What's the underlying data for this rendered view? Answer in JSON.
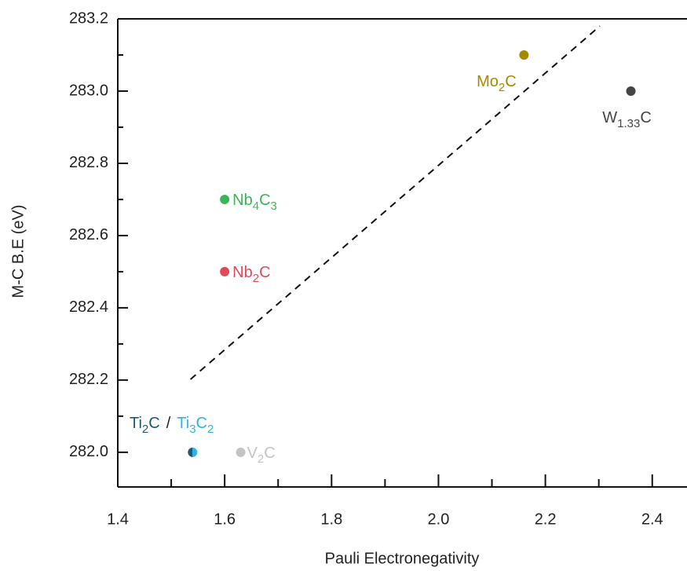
{
  "chart_data": {
    "type": "scatter",
    "x_label": "Pauli Electronegativity",
    "y_label": "M-C B.E (eV)",
    "xlim": [
      1.4,
      2.465
    ],
    "ylim": [
      281.904,
      283.2
    ],
    "xticks": [
      1.4,
      1.6,
      1.8,
      {
        "value": 2,
        "label": "2.0"
      },
      2.2,
      2.4
    ],
    "yticks": [
      {
        "value": 282,
        "label": "282.0"
      },
      282.2,
      282.4,
      282.6,
      282.8,
      {
        "value": 283,
        "label": "283.0"
      },
      283.2
    ],
    "separator": "/",
    "series": [
      {
        "name": [
          "Ti",
          "2",
          "C"
        ],
        "color": "#1b5a72",
        "x": [
          1.54
        ],
        "values": [
          282.0
        ]
      },
      {
        "name": [
          "Ti",
          "3",
          "C",
          "2"
        ],
        "color": "#2bb5e6",
        "x": [
          1.54
        ],
        "values": [
          282.0
        ]
      },
      {
        "name": [
          "V",
          "2",
          "C"
        ],
        "color": "#c4c4c4",
        "x": [
          1.63
        ],
        "values": [
          282.0
        ]
      },
      {
        "name": [
          "Nb",
          "2",
          "C"
        ],
        "color": "#df4a5b",
        "x": [
          1.6
        ],
        "values": [
          282.5
        ]
      },
      {
        "name": [
          "Nb",
          "4",
          "C",
          "3"
        ],
        "color": "#3cb45a",
        "x": [
          1.6
        ],
        "values": [
          282.7
        ]
      },
      {
        "name": [
          "Mo",
          "2",
          "C"
        ],
        "color": "#a38a00",
        "x": [
          2.16
        ],
        "values": [
          283.1
        ]
      },
      {
        "name": [
          "W",
          "1.33",
          "C"
        ],
        "color": "#454545",
        "x": [
          2.36
        ],
        "values": [
          283.0
        ]
      }
    ],
    "fit_line": {
      "x": [
        1.536,
        2.302
      ],
      "y": [
        282.202,
        283.18
      ],
      "color": "#111111"
    }
  }
}
